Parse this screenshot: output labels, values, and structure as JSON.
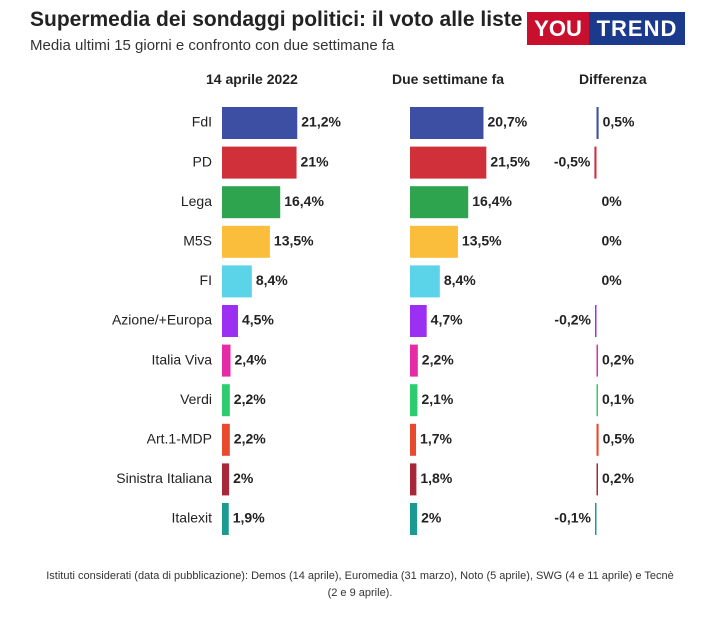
{
  "header": {
    "title": "Supermedia dei sondaggi politici: il voto alle liste",
    "subtitle": "Media ultimi 15 giorni e confronto con due settimane fa",
    "logo_left": "YOU",
    "logo_right": "TREND"
  },
  "columns": {
    "current": "14 aprile 2022",
    "previous": "Due settimane fa",
    "difference": "Differenza"
  },
  "footnote": "Istituti considerati (data di pubblicazione): Demos (14 aprile), Euromedia (31 marzo), Noto (5 aprile), SWG (4 e 11 aprile) e Tecnè (2 e 9 aprile).",
  "chart_data": {
    "type": "bar",
    "categories": [
      "FdI",
      "PD",
      "Lega",
      "M5S",
      "FI",
      "Azione/+Europa",
      "Italia Viva",
      "Verdi",
      "Art.1-MDP",
      "Sinistra Italiana",
      "Italexit"
    ],
    "series": [
      {
        "name": "14 aprile 2022",
        "values": [
          21.2,
          21,
          16.4,
          13.5,
          8.4,
          4.5,
          2.4,
          2.2,
          2.2,
          2,
          1.9
        ],
        "labels": [
          "21,2%",
          "21%",
          "16,4%",
          "13,5%",
          "8,4%",
          "4,5%",
          "2,4%",
          "2,2%",
          "2,2%",
          "2%",
          "1,9%"
        ]
      },
      {
        "name": "Due settimane fa",
        "values": [
          20.7,
          21.5,
          16.4,
          13.5,
          8.4,
          4.7,
          2.2,
          2.1,
          1.7,
          1.8,
          2
        ],
        "labels": [
          "20,7%",
          "21,5%",
          "16,4%",
          "13,5%",
          "8,4%",
          "4,7%",
          "2,2%",
          "2,1%",
          "1,7%",
          "1,8%",
          "2%"
        ]
      },
      {
        "name": "Differenza",
        "values": [
          0.5,
          -0.5,
          0,
          0,
          0,
          -0.2,
          0.2,
          0.1,
          0.5,
          0.2,
          -0.1
        ],
        "labels": [
          "0,5%",
          "-0,5%",
          "0%",
          "0%",
          "0%",
          "-0,2%",
          "0,2%",
          "0,1%",
          "0,5%",
          "0,2%",
          "-0,1%"
        ]
      }
    ],
    "colors": [
      "#3d4fa3",
      "#d0303a",
      "#2ea44f",
      "#fbbd3c",
      "#5bd3e8",
      "#9b30f2",
      "#e62ba6",
      "#2ecc71",
      "#e84a2e",
      "#a8283a",
      "#1a9a93"
    ],
    "grid": false,
    "legend": "none"
  }
}
